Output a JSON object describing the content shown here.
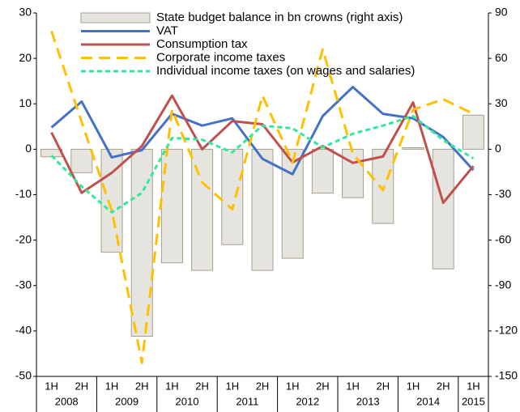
{
  "chart_data": {
    "type": "bar-line",
    "categories": [
      "1H",
      "2H",
      "1H",
      "2H",
      "1H",
      "2H",
      "1H",
      "2H",
      "1H",
      "2H",
      "1H",
      "2H",
      "1H",
      "2H",
      "1H"
    ],
    "years": [
      "2008",
      "2009",
      "2010",
      "2011",
      "2012",
      "2013",
      "2014",
      "2015"
    ],
    "ylim": [
      -50,
      30
    ],
    "yticks": [
      -50,
      -40,
      -30,
      -20,
      -10,
      0,
      10,
      20,
      30
    ],
    "y2lim": [
      -150,
      90
    ],
    "y2ticks": [
      -150,
      -120,
      -90,
      -60,
      -30,
      0,
      30,
      60,
      90
    ],
    "series": [
      {
        "name": "State budget balance in bn crowns (right axis)",
        "kind": "bar",
        "axis": "y2",
        "color": "#e6e4de",
        "values": [
          -5,
          -15.5,
          -68,
          -123.5,
          -75,
          -80,
          -63,
          -80,
          -72,
          -29,
          -32,
          -49,
          1,
          -79,
          22.5
        ]
      },
      {
        "name": "VAT",
        "kind": "line",
        "color": "#4472c4",
        "values": [
          4.8,
          10.5,
          -1.8,
          -0.2,
          7.8,
          5.2,
          6.8,
          -2.1,
          -5.5,
          7.3,
          13.7,
          7.8,
          6.8,
          2.7,
          -4.6
        ]
      },
      {
        "name": "Consumption tax",
        "kind": "line",
        "color": "#c0504d",
        "values": [
          3.7,
          -9.6,
          -5.2,
          0.7,
          11.8,
          0,
          6.2,
          5.5,
          -2.9,
          0.7,
          -3,
          -1.6,
          10.3,
          -11.8,
          -3.7
        ]
      },
      {
        "name": "Corporate income taxes",
        "kind": "line",
        "dash": "14 8",
        "color": "#ffc000",
        "values": [
          26,
          6,
          -13.5,
          -47,
          8.7,
          -7.3,
          -13.2,
          11.8,
          -2.9,
          22,
          -1,
          -9,
          8.7,
          11,
          7.8
        ]
      },
      {
        "name": "Individual income taxes (on wages and salaries)",
        "kind": "line",
        "dash": "6 4",
        "color": "#33e89a",
        "values": [
          -1.4,
          -8.2,
          -13.9,
          -9.6,
          2.5,
          2.1,
          -0.7,
          5.2,
          4.6,
          0.4,
          3.4,
          5.2,
          7.3,
          2,
          -2
        ]
      }
    ]
  }
}
